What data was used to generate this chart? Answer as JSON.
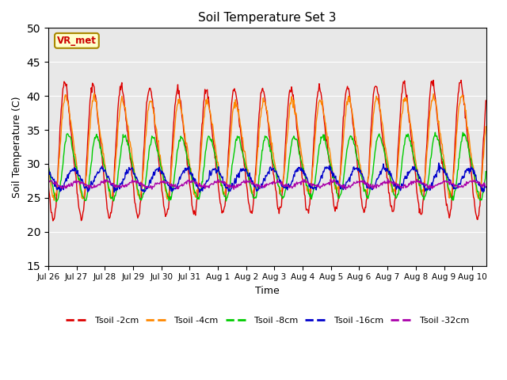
{
  "title": "Soil Temperature Set 3",
  "xlabel": "Time",
  "ylabel": "Soil Temperature (C)",
  "ylim": [
    15,
    50
  ],
  "yticks": [
    15,
    20,
    25,
    30,
    35,
    40,
    45,
    50
  ],
  "colors": {
    "Tsoil -2cm": "#dd0000",
    "Tsoil -4cm": "#ff8800",
    "Tsoil -8cm": "#00cc00",
    "Tsoil -16cm": "#0000cc",
    "Tsoil -32cm": "#aa00aa"
  },
  "background_color": "#e8e8e8",
  "annotation_text": "VR_met",
  "annotation_bg": "#ffffcc",
  "annotation_border": "#aa8800",
  "tick_labels": [
    "Jul 26",
    "Jul 27",
    "Jul 28",
    "Jul 29",
    "Jul 30",
    "Jul 31",
    "Aug 1",
    "Aug 2",
    "Aug 3",
    "Aug 4",
    "Aug 5",
    "Aug 6",
    "Aug 7",
    "Aug 8",
    "Aug 9",
    "Aug 10"
  ]
}
